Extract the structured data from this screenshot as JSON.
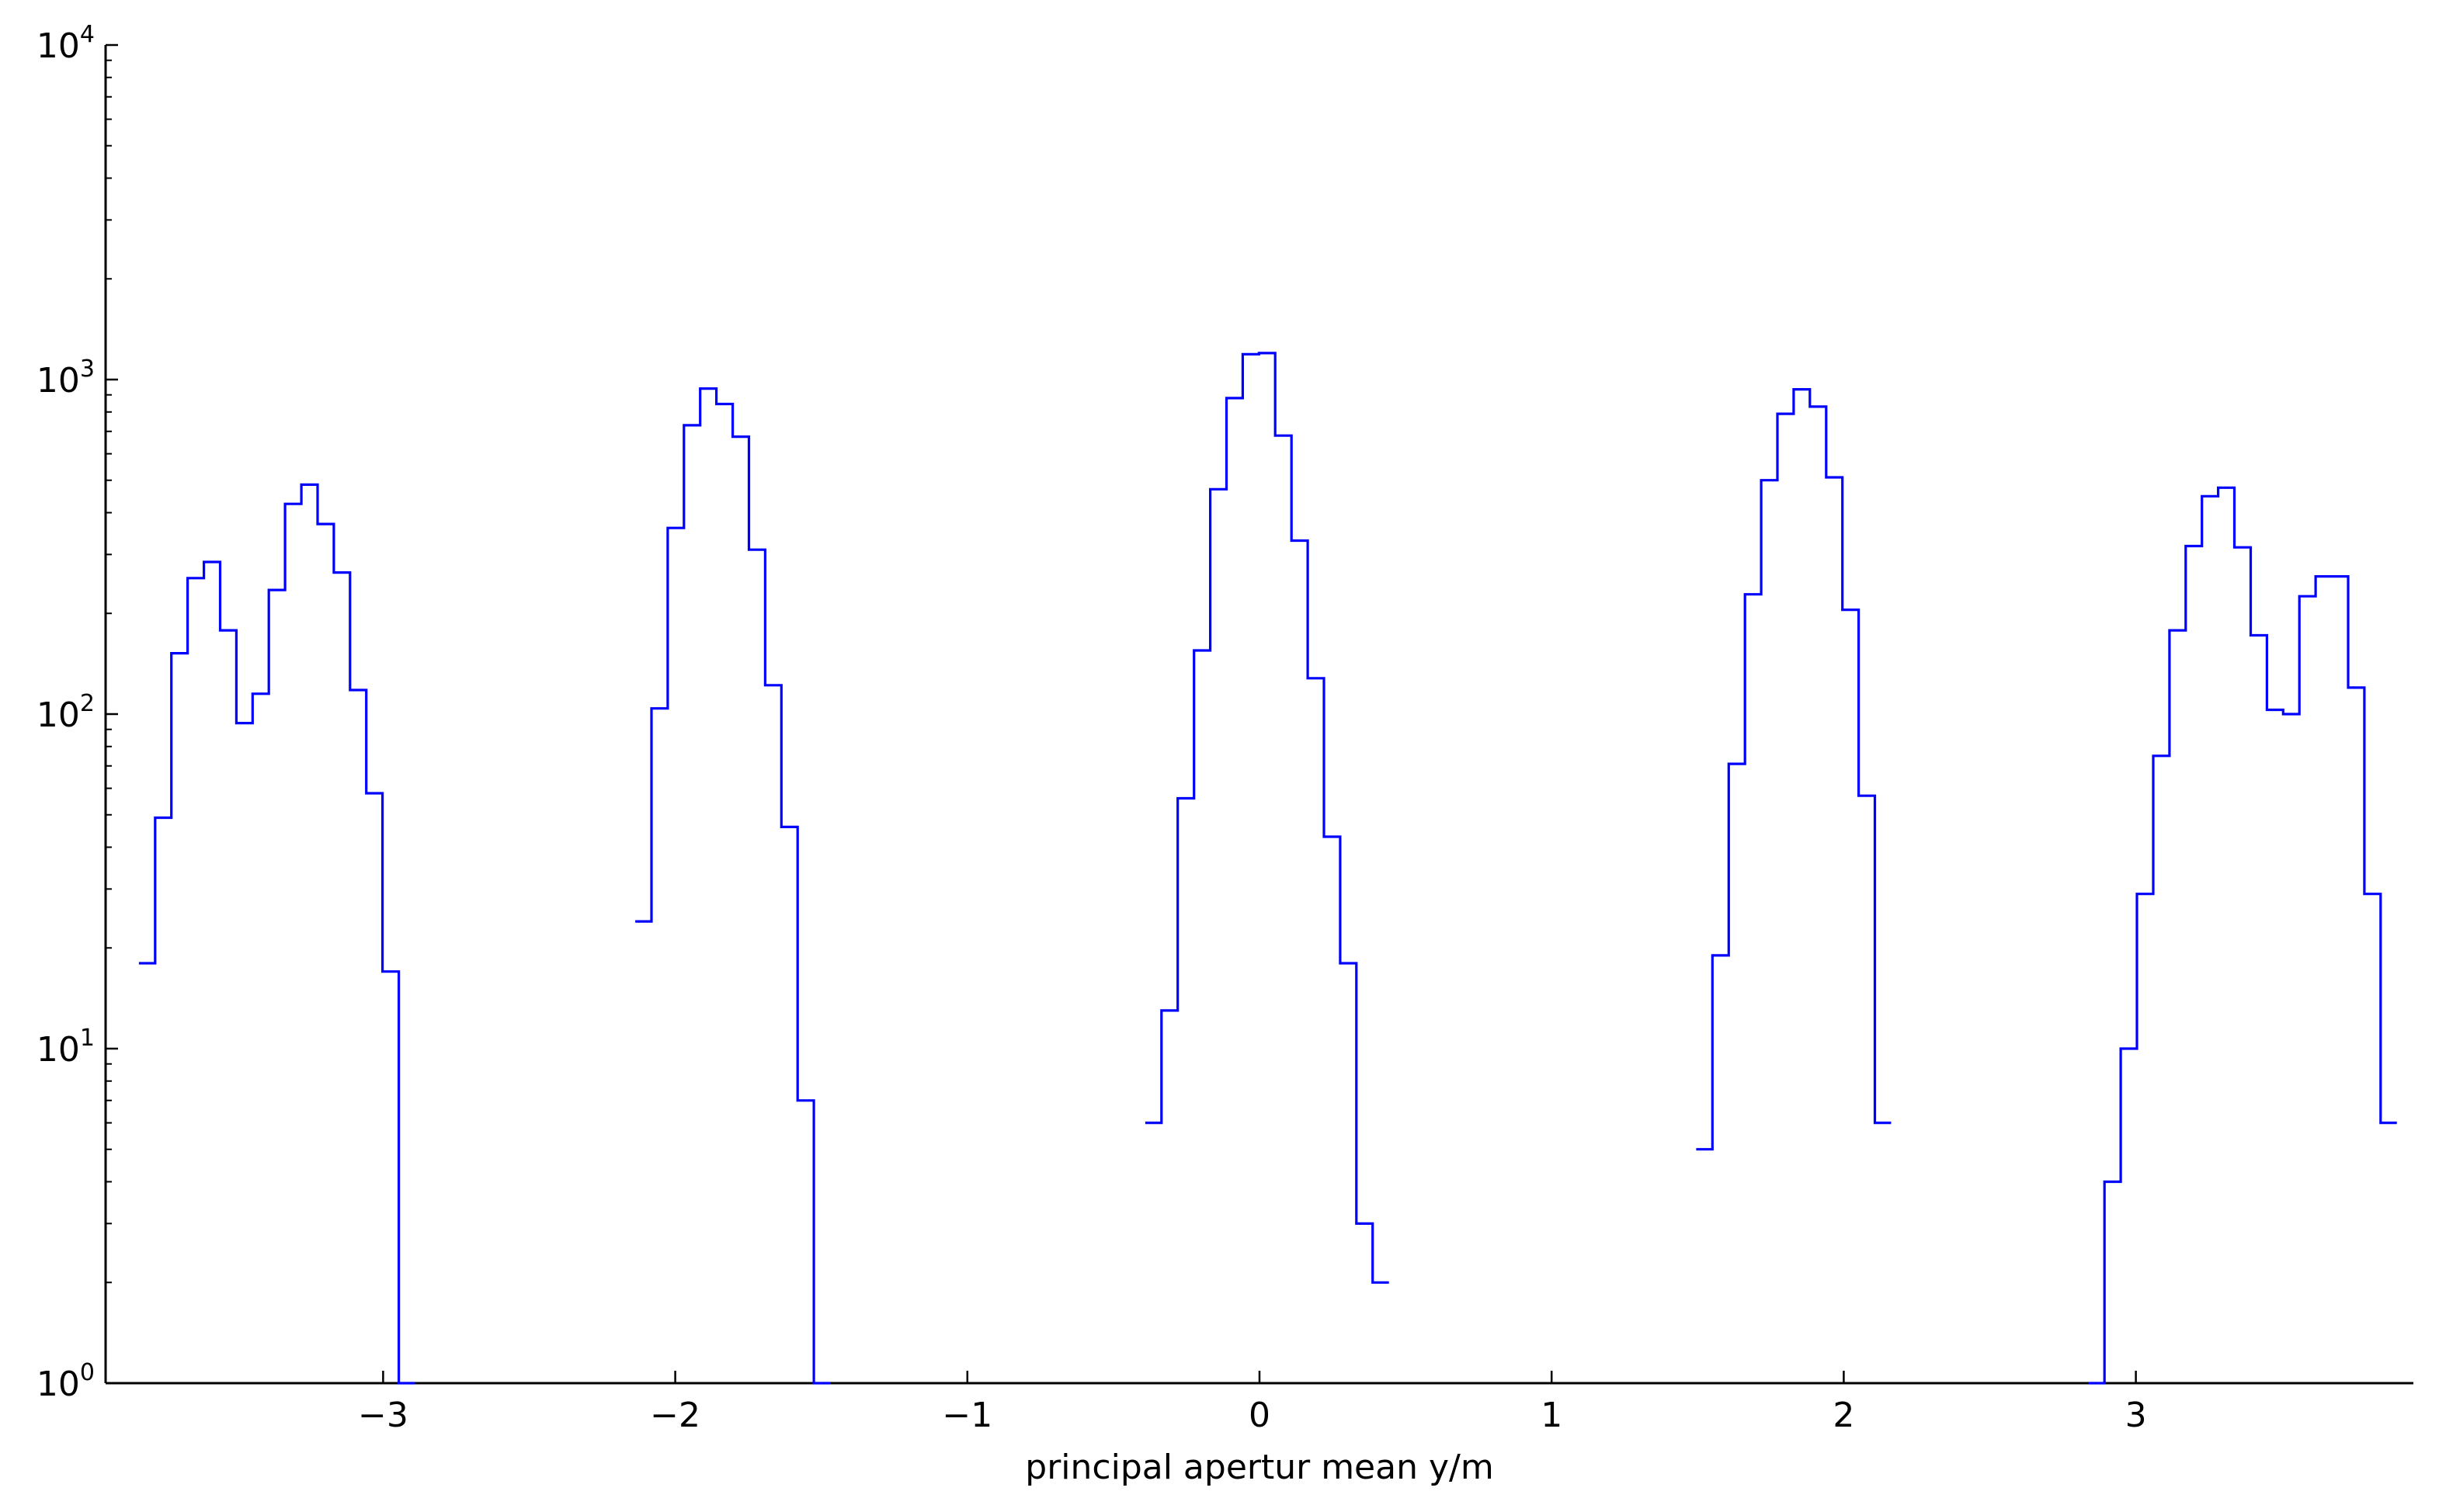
{
  "chart_data": {
    "type": "histogram",
    "title": "",
    "xlabel": "principal apertur mean y/m",
    "ylabel": "",
    "xlim": [
      -3.95,
      3.95
    ],
    "ylim": [
      1,
      10000
    ],
    "yscale": "log",
    "grid": false,
    "color": "#0000ff",
    "x_ticks": [
      -3,
      -2,
      -1,
      0,
      1,
      2,
      3
    ],
    "x_tick_labels": [
      "−3",
      "−2",
      "−1",
      "0",
      "1",
      "2",
      "3"
    ],
    "y_ticks": [
      {
        "value": 1,
        "base": "10",
        "exp": "0"
      },
      {
        "value": 10,
        "base": "10",
        "exp": "1"
      },
      {
        "value": 100,
        "base": "10",
        "exp": "2"
      },
      {
        "value": 1000,
        "base": "10",
        "exp": "3"
      },
      {
        "value": 10000,
        "base": "10",
        "exp": "4"
      }
    ],
    "bin_width": 0.0556,
    "series": [
      {
        "x_start": -3.836,
        "counts": [
          18,
          49,
          152,
          255,
          285,
          178,
          94,
          115,
          235,
          425,
          485,
          370,
          265,
          118,
          58,
          17,
          1
        ]
      },
      {
        "x_start": -2.137,
        "counts": [
          24,
          104,
          360,
          730,
          940,
          845,
          675,
          310,
          122,
          46,
          7,
          1
        ]
      },
      {
        "x_start": -0.391,
        "counts": [
          6,
          13,
          56,
          155,
          470,
          880,
          1190,
          1200,
          680,
          330,
          128,
          43,
          18,
          3,
          2
        ]
      },
      {
        "x_start": 1.495,
        "counts": [
          5,
          19,
          71,
          228,
          500,
          790,
          935,
          830,
          510,
          205,
          57,
          6
        ]
      },
      {
        "x_start": 2.837,
        "counts": [
          1,
          4,
          10,
          29,
          75,
          178,
          318,
          448,
          475,
          315,
          172,
          103,
          100,
          225,
          258,
          258,
          120,
          29,
          6
        ]
      }
    ]
  }
}
